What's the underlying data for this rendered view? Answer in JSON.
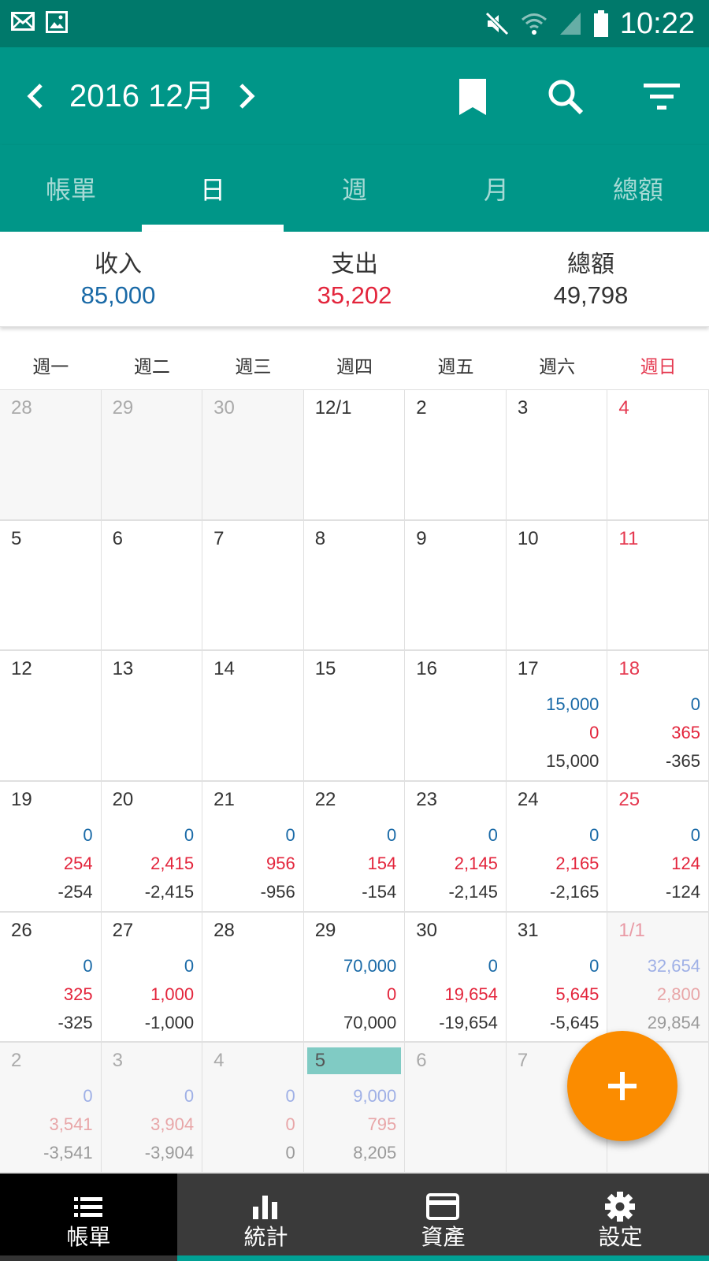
{
  "status_bar": {
    "time": "10:22",
    "icons": [
      "mail-icon",
      "image-icon",
      "mute-icon",
      "wifi-icon",
      "signal-icon",
      "battery-icon"
    ]
  },
  "header": {
    "title": "2016 12月",
    "actions": [
      "bookmark-icon",
      "search-icon",
      "filter-icon"
    ]
  },
  "tabs": [
    {
      "label": "帳單",
      "active": false
    },
    {
      "label": "日",
      "active": true
    },
    {
      "label": "週",
      "active": false
    },
    {
      "label": "月",
      "active": false
    },
    {
      "label": "總額",
      "active": false
    }
  ],
  "summary": {
    "income_label": "收入",
    "income_value": "85,000",
    "expense_label": "支出",
    "expense_value": "35,202",
    "total_label": "總額",
    "total_value": "49,798"
  },
  "weekdays": [
    "週一",
    "週二",
    "週三",
    "週四",
    "週五",
    "週六",
    "週日"
  ],
  "calendar": {
    "cells": [
      {
        "date": "28",
        "dim": true
      },
      {
        "date": "29",
        "dim": true
      },
      {
        "date": "30",
        "dim": true
      },
      {
        "date": "12/1"
      },
      {
        "date": "2"
      },
      {
        "date": "3"
      },
      {
        "date": "4",
        "sun": true
      },
      {
        "date": "5"
      },
      {
        "date": "6"
      },
      {
        "date": "7"
      },
      {
        "date": "8"
      },
      {
        "date": "9"
      },
      {
        "date": "10"
      },
      {
        "date": "11",
        "sun": true
      },
      {
        "date": "12"
      },
      {
        "date": "13"
      },
      {
        "date": "14"
      },
      {
        "date": "15"
      },
      {
        "date": "16"
      },
      {
        "date": "17",
        "inc": "15,000",
        "exp": "0",
        "tot": "15,000"
      },
      {
        "date": "18",
        "sun": true,
        "inc": "0",
        "exp": "365",
        "tot": "-365"
      },
      {
        "date": "19",
        "inc": "0",
        "exp": "254",
        "tot": "-254"
      },
      {
        "date": "20",
        "inc": "0",
        "exp": "2,415",
        "tot": "-2,415"
      },
      {
        "date": "21",
        "inc": "0",
        "exp": "956",
        "tot": "-956"
      },
      {
        "date": "22",
        "inc": "0",
        "exp": "154",
        "tot": "-154"
      },
      {
        "date": "23",
        "inc": "0",
        "exp": "2,145",
        "tot": "-2,145"
      },
      {
        "date": "24",
        "inc": "0",
        "exp": "2,165",
        "tot": "-2,165"
      },
      {
        "date": "25",
        "sun": true,
        "inc": "0",
        "exp": "124",
        "tot": "-124"
      },
      {
        "date": "26",
        "inc": "0",
        "exp": "325",
        "tot": "-325"
      },
      {
        "date": "27",
        "inc": "0",
        "exp": "1,000",
        "tot": "-1,000"
      },
      {
        "date": "28"
      },
      {
        "date": "29",
        "inc": "70,000",
        "exp": "0",
        "tot": "70,000"
      },
      {
        "date": "30",
        "inc": "0",
        "exp": "19,654",
        "tot": "-19,654"
      },
      {
        "date": "31",
        "inc": "0",
        "exp": "5,645",
        "tot": "-5,645"
      },
      {
        "date": "1/1",
        "sun": true,
        "dim": true,
        "inc": "32,654",
        "exp": "2,800",
        "tot": "29,854"
      },
      {
        "date": "2",
        "dim": true,
        "inc": "0",
        "exp": "3,541",
        "tot": "-3,541"
      },
      {
        "date": "3",
        "dim": true,
        "inc": "0",
        "exp": "3,904",
        "tot": "-3,904"
      },
      {
        "date": "4",
        "dim": true,
        "inc": "0",
        "exp": "0",
        "tot": "0"
      },
      {
        "date": "5",
        "dim": true,
        "today": true,
        "inc": "9,000",
        "exp": "795",
        "tot": "8,205"
      },
      {
        "date": "6",
        "dim": true
      },
      {
        "date": "7",
        "dim": true
      },
      {
        "date": "",
        "dim": true,
        "sun": true
      }
    ]
  },
  "fab": {
    "icon": "plus-icon"
  },
  "bottom_nav": [
    {
      "label": "帳單",
      "icon": "list-icon",
      "active": true
    },
    {
      "label": "統計",
      "icon": "bar-chart-icon",
      "active": false
    },
    {
      "label": "資產",
      "icon": "card-icon",
      "active": false
    },
    {
      "label": "設定",
      "icon": "gear-icon",
      "active": false
    }
  ],
  "colors": {
    "primary": "#009688",
    "primary_dark": "#00796b",
    "income": "#1a6aa7",
    "expense": "#e3253c",
    "fab": "#fb8c00",
    "today_highlight": "#80cbc4"
  }
}
